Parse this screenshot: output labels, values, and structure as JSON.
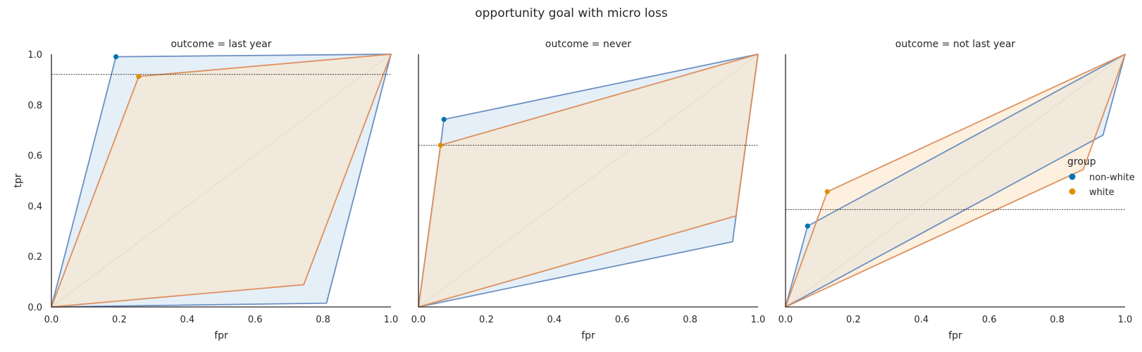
{
  "title": "opportunity goal with micro loss",
  "legend": {
    "title": "group",
    "placement": "right",
    "entries": [
      {
        "label": "non-white",
        "color": "#0173b2"
      },
      {
        "label": "white",
        "color": "#de8f05"
      }
    ]
  },
  "colors": {
    "non-white_line": "#6b8fc2",
    "non-white_fill": "#cfe2f0",
    "white_line": "#de8f5d",
    "white_fill": "#fbe3c4",
    "diagonal": "#d3d3d3",
    "threshold": "#000000"
  },
  "chart_data": [
    {
      "type": "area",
      "title": "outcome = last year",
      "xlabel": "fpr",
      "ylabel": "tpr",
      "xlim": [
        0,
        1
      ],
      "ylim": [
        0,
        1
      ],
      "xticks": [
        "0.0",
        "0.2",
        "0.4",
        "0.6",
        "0.8",
        "1.0"
      ],
      "yticks": [
        "0.0",
        "0.2",
        "0.4",
        "0.6",
        "0.8",
        "1.0"
      ],
      "threshold_tpr": 0.92,
      "series": [
        {
          "name": "non-white",
          "hull": [
            [
              0,
              0
            ],
            [
              0.19,
              0.99
            ],
            [
              1,
              1
            ],
            [
              0.81,
              0.015
            ]
          ],
          "point": [
            0.19,
            0.99
          ]
        },
        {
          "name": "white",
          "hull": [
            [
              0,
              0
            ],
            [
              0.257,
              0.912
            ],
            [
              1,
              1
            ],
            [
              0.743,
              0.088
            ]
          ],
          "point": [
            0.257,
            0.912
          ]
        }
      ]
    },
    {
      "type": "area",
      "title": "outcome = never",
      "xlabel": "fpr",
      "ylabel": "",
      "xlim": [
        0,
        1
      ],
      "ylim": [
        0,
        1
      ],
      "xticks": [
        "0.0",
        "0.2",
        "0.4",
        "0.6",
        "0.8",
        "1.0"
      ],
      "yticks": [],
      "threshold_tpr": 0.64,
      "series": [
        {
          "name": "non-white",
          "hull": [
            [
              0,
              0
            ],
            [
              0.065,
              0.64
            ],
            [
              0.075,
              0.742
            ],
            [
              1,
              1
            ],
            [
              0.925,
              0.258
            ]
          ],
          "point": [
            0.075,
            0.742
          ]
        },
        {
          "name": "white",
          "hull": [
            [
              0,
              0
            ],
            [
              0.065,
              0.64
            ],
            [
              1,
              1
            ],
            [
              0.935,
              0.36
            ]
          ],
          "point": [
            0.065,
            0.64
          ]
        }
      ]
    },
    {
      "type": "area",
      "title": "outcome = not last year",
      "xlabel": "fpr",
      "ylabel": "",
      "xlim": [
        0,
        1
      ],
      "ylim": [
        0,
        1
      ],
      "xticks": [
        "0.0",
        "0.2",
        "0.4",
        "0.6",
        "0.8",
        "1.0"
      ],
      "yticks": [],
      "threshold_tpr": 0.385,
      "series": [
        {
          "name": "non-white",
          "hull": [
            [
              0,
              0
            ],
            [
              0.065,
              0.32
            ],
            [
              1,
              1
            ],
            [
              0.935,
              0.68
            ]
          ],
          "point": [
            0.065,
            0.32
          ]
        },
        {
          "name": "white",
          "hull": [
            [
              0,
              0
            ],
            [
              0.123,
              0.456
            ],
            [
              1,
              1
            ],
            [
              0.877,
              0.544
            ]
          ],
          "point": [
            0.123,
            0.456
          ]
        }
      ]
    }
  ]
}
